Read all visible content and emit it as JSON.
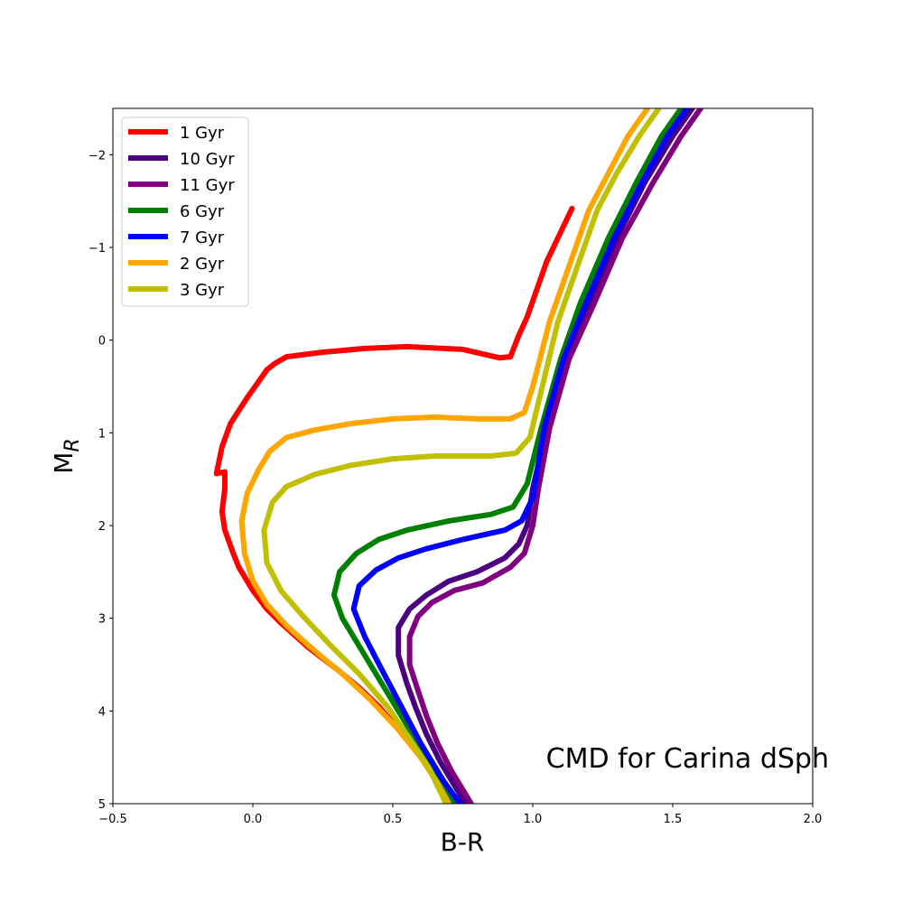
{
  "chart_data": {
    "type": "line",
    "title": "",
    "xlabel": "B-R",
    "ylabel_main": "M",
    "ylabel_sub": "R",
    "xlim": [
      -0.5,
      2.0
    ],
    "ylim": [
      5,
      -2.5
    ],
    "y_inverted": true,
    "grid": false,
    "legend_position": "top-left",
    "annotation": "CMD for Carina dSph",
    "xticks": [
      {
        "value": -0.5,
        "label": "−0.5"
      },
      {
        "value": 0.0,
        "label": "0.0"
      },
      {
        "value": 0.5,
        "label": "0.5"
      },
      {
        "value": 1.0,
        "label": "1.0"
      },
      {
        "value": 1.5,
        "label": "1.5"
      },
      {
        "value": 2.0,
        "label": "2.0"
      }
    ],
    "yticks": [
      {
        "value": -2,
        "label": "−2"
      },
      {
        "value": -1,
        "label": "−1"
      },
      {
        "value": 0,
        "label": "0"
      },
      {
        "value": 1,
        "label": "1"
      },
      {
        "value": 2,
        "label": "2"
      },
      {
        "value": 3,
        "label": "3"
      },
      {
        "value": 4,
        "label": "4"
      },
      {
        "value": 5,
        "label": "5"
      }
    ],
    "series": [
      {
        "name": "1 Gyr",
        "color": "#ff0000",
        "points": [
          [
            1.14,
            -1.42
          ],
          [
            1.05,
            -0.85
          ],
          [
            0.98,
            -0.25
          ],
          [
            0.95,
            -0.05
          ],
          [
            0.92,
            0.18
          ],
          [
            0.88,
            0.19
          ],
          [
            0.75,
            0.1
          ],
          [
            0.55,
            0.07
          ],
          [
            0.4,
            0.09
          ],
          [
            0.25,
            0.13
          ],
          [
            0.12,
            0.18
          ],
          [
            0.08,
            0.25
          ],
          [
            0.05,
            0.32
          ],
          [
            0.02,
            0.45
          ],
          [
            -0.02,
            0.62
          ],
          [
            -0.08,
            0.9
          ],
          [
            -0.11,
            1.15
          ],
          [
            -0.13,
            1.44
          ],
          [
            -0.1,
            1.42
          ],
          [
            -0.1,
            1.6
          ],
          [
            -0.11,
            1.85
          ],
          [
            -0.1,
            2.05
          ],
          [
            -0.07,
            2.3
          ],
          [
            -0.05,
            2.45
          ],
          [
            0.0,
            2.7
          ],
          [
            0.05,
            2.9
          ],
          [
            0.1,
            3.05
          ],
          [
            0.2,
            3.32
          ],
          [
            0.3,
            3.55
          ],
          [
            0.38,
            3.75
          ],
          [
            0.45,
            3.95
          ],
          [
            0.52,
            4.2
          ],
          [
            0.6,
            4.5
          ],
          [
            0.66,
            4.75
          ],
          [
            0.7,
            5.0
          ]
        ]
      },
      {
        "name": "10 Gyr",
        "color": "#4b0082",
        "points": [
          [
            1.57,
            -2.5
          ],
          [
            1.5,
            -2.2
          ],
          [
            1.4,
            -1.7
          ],
          [
            1.3,
            -1.1
          ],
          [
            1.2,
            -0.4
          ],
          [
            1.12,
            0.2
          ],
          [
            1.05,
            0.95
          ],
          [
            1.0,
            1.6
          ],
          [
            0.98,
            2.0
          ],
          [
            0.95,
            2.2
          ],
          [
            0.9,
            2.35
          ],
          [
            0.8,
            2.5
          ],
          [
            0.7,
            2.6
          ],
          [
            0.62,
            2.75
          ],
          [
            0.56,
            2.9
          ],
          [
            0.52,
            3.1
          ],
          [
            0.52,
            3.4
          ],
          [
            0.55,
            3.7
          ],
          [
            0.58,
            3.95
          ],
          [
            0.62,
            4.25
          ],
          [
            0.67,
            4.55
          ],
          [
            0.72,
            4.8
          ],
          [
            0.76,
            5.0
          ]
        ]
      },
      {
        "name": "11 Gyr",
        "color": "#800080",
        "points": [
          [
            1.6,
            -2.5
          ],
          [
            1.53,
            -2.2
          ],
          [
            1.43,
            -1.7
          ],
          [
            1.32,
            -1.1
          ],
          [
            1.22,
            -0.4
          ],
          [
            1.13,
            0.2
          ],
          [
            1.06,
            0.95
          ],
          [
            1.02,
            1.6
          ],
          [
            1.0,
            2.0
          ],
          [
            0.97,
            2.3
          ],
          [
            0.92,
            2.45
          ],
          [
            0.82,
            2.62
          ],
          [
            0.72,
            2.7
          ],
          [
            0.64,
            2.83
          ],
          [
            0.59,
            2.98
          ],
          [
            0.56,
            3.2
          ],
          [
            0.56,
            3.5
          ],
          [
            0.59,
            3.78
          ],
          [
            0.62,
            4.05
          ],
          [
            0.66,
            4.35
          ],
          [
            0.71,
            4.65
          ],
          [
            0.75,
            4.85
          ],
          [
            0.78,
            5.0
          ]
        ]
      },
      {
        "name": "6 Gyr",
        "color": "#008000",
        "points": [
          [
            1.53,
            -2.5
          ],
          [
            1.46,
            -2.2
          ],
          [
            1.37,
            -1.7
          ],
          [
            1.27,
            -1.1
          ],
          [
            1.17,
            -0.4
          ],
          [
            1.1,
            0.2
          ],
          [
            1.03,
            0.95
          ],
          [
            0.98,
            1.55
          ],
          [
            0.93,
            1.8
          ],
          [
            0.85,
            1.88
          ],
          [
            0.7,
            1.95
          ],
          [
            0.55,
            2.05
          ],
          [
            0.45,
            2.15
          ],
          [
            0.37,
            2.3
          ],
          [
            0.31,
            2.5
          ],
          [
            0.29,
            2.75
          ],
          [
            0.32,
            3.0
          ],
          [
            0.38,
            3.3
          ],
          [
            0.45,
            3.65
          ],
          [
            0.52,
            4.0
          ],
          [
            0.6,
            4.4
          ],
          [
            0.66,
            4.7
          ],
          [
            0.72,
            5.0
          ]
        ]
      },
      {
        "name": "7 Gyr",
        "color": "#0000ff",
        "points": [
          [
            1.55,
            -2.5
          ],
          [
            1.48,
            -2.2
          ],
          [
            1.39,
            -1.7
          ],
          [
            1.29,
            -1.1
          ],
          [
            1.19,
            -0.4
          ],
          [
            1.11,
            0.2
          ],
          [
            1.04,
            0.95
          ],
          [
            1.0,
            1.7
          ],
          [
            0.96,
            1.95
          ],
          [
            0.9,
            2.05
          ],
          [
            0.75,
            2.15
          ],
          [
            0.62,
            2.25
          ],
          [
            0.52,
            2.35
          ],
          [
            0.44,
            2.48
          ],
          [
            0.38,
            2.65
          ],
          [
            0.36,
            2.9
          ],
          [
            0.4,
            3.2
          ],
          [
            0.46,
            3.55
          ],
          [
            0.53,
            3.95
          ],
          [
            0.6,
            4.35
          ],
          [
            0.68,
            4.75
          ],
          [
            0.74,
            5.0
          ]
        ]
      },
      {
        "name": "2 Gyr",
        "color": "#ffa500",
        "points": [
          [
            1.41,
            -2.5
          ],
          [
            1.34,
            -2.2
          ],
          [
            1.27,
            -1.8
          ],
          [
            1.2,
            -1.4
          ],
          [
            1.13,
            -0.8
          ],
          [
            1.06,
            -0.2
          ],
          [
            1.0,
            0.5
          ],
          [
            0.97,
            0.78
          ],
          [
            0.92,
            0.85
          ],
          [
            0.8,
            0.85
          ],
          [
            0.65,
            0.83
          ],
          [
            0.5,
            0.85
          ],
          [
            0.35,
            0.9
          ],
          [
            0.22,
            0.97
          ],
          [
            0.12,
            1.05
          ],
          [
            0.06,
            1.2
          ],
          [
            0.02,
            1.4
          ],
          [
            -0.02,
            1.65
          ],
          [
            -0.04,
            1.95
          ],
          [
            -0.03,
            2.3
          ],
          [
            0.0,
            2.6
          ],
          [
            0.05,
            2.85
          ],
          [
            0.12,
            3.08
          ],
          [
            0.22,
            3.35
          ],
          [
            0.32,
            3.6
          ],
          [
            0.42,
            3.88
          ],
          [
            0.52,
            4.2
          ],
          [
            0.6,
            4.5
          ],
          [
            0.66,
            4.78
          ],
          [
            0.7,
            5.0
          ]
        ]
      },
      {
        "name": "3 Gyr",
        "color": "#c0c000",
        "points": [
          [
            1.45,
            -2.5
          ],
          [
            1.38,
            -2.2
          ],
          [
            1.3,
            -1.8
          ],
          [
            1.23,
            -1.4
          ],
          [
            1.16,
            -0.8
          ],
          [
            1.09,
            -0.2
          ],
          [
            1.03,
            0.55
          ],
          [
            0.99,
            1.05
          ],
          [
            0.94,
            1.22
          ],
          [
            0.85,
            1.25
          ],
          [
            0.65,
            1.25
          ],
          [
            0.5,
            1.28
          ],
          [
            0.35,
            1.35
          ],
          [
            0.22,
            1.45
          ],
          [
            0.12,
            1.58
          ],
          [
            0.07,
            1.75
          ],
          [
            0.04,
            2.05
          ],
          [
            0.05,
            2.4
          ],
          [
            0.1,
            2.7
          ],
          [
            0.18,
            2.98
          ],
          [
            0.28,
            3.3
          ],
          [
            0.38,
            3.6
          ],
          [
            0.48,
            3.95
          ],
          [
            0.56,
            4.3
          ],
          [
            0.63,
            4.62
          ],
          [
            0.69,
            5.0
          ]
        ]
      }
    ]
  }
}
